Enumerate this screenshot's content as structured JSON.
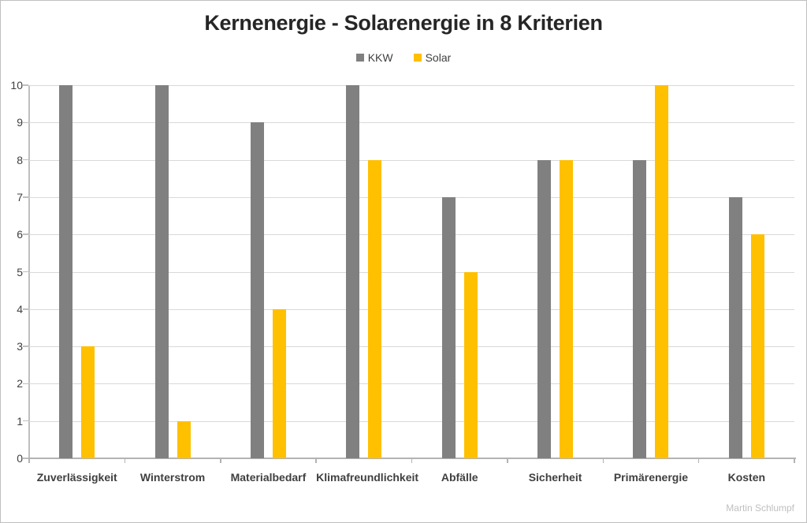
{
  "page": {
    "credit": "Martin Schlumpf"
  },
  "chart_data": {
    "type": "bar",
    "title": "Kernenergie - Solarenergie in 8 Kriterien",
    "categories": [
      "Zuverlässigkeit",
      "Winterstrom",
      "Materialbedarf",
      "Klimafreundlichkeit",
      "Abfälle",
      "Sicherheit",
      "Primärenergie",
      "Kosten"
    ],
    "series": [
      {
        "name": "KKW",
        "color": "#808080",
        "values": [
          10,
          10,
          9,
          10,
          7,
          8,
          8,
          7
        ]
      },
      {
        "name": "Solar",
        "color": "#FFC000",
        "values": [
          3,
          1,
          4,
          8,
          5,
          8,
          10,
          6
        ]
      }
    ],
    "ylim": [
      0,
      10
    ],
    "ytick_step": 1,
    "yticks": [
      0,
      1,
      2,
      3,
      4,
      5,
      6,
      7,
      8,
      9,
      10
    ],
    "grid": true,
    "legend_position": "top-center",
    "xlabel": "",
    "ylabel": ""
  },
  "style": {
    "grid_color": "#D9D9D9",
    "axis_color": "#BFBFBF",
    "baseline_color": "#B3B3B3",
    "title_color": "#262626",
    "label_color": "#404040",
    "credit_color": "#BFBFBF"
  }
}
